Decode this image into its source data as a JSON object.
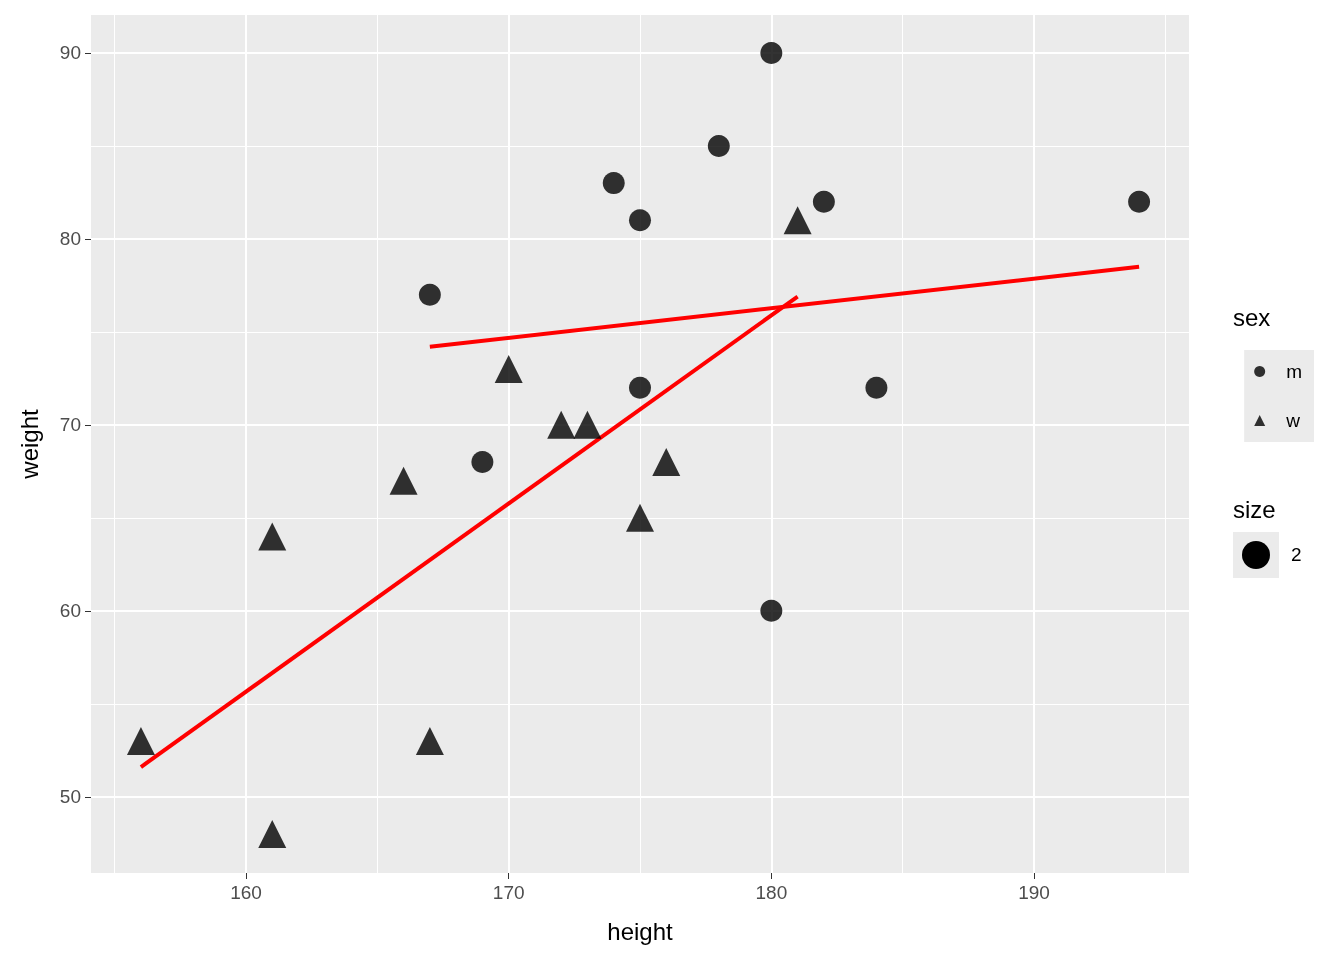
{
  "chart_data": {
    "type": "scatter",
    "xlabel": "height",
    "ylabel": "weight",
    "legend_title": "sex",
    "legend": "right",
    "grid": true,
    "xlim": [
      154.1,
      195.9
    ],
    "xticks": [
      160,
      170,
      180,
      190
    ],
    "ylim": [
      45.9,
      92.04
    ],
    "yticks": [
      50,
      60,
      70,
      80,
      90
    ],
    "annotations": [
      "size",
      "2"
    ],
    "series": [
      {
        "name": "m",
        "color": "#000000",
        "marker": "circle",
        "x": [
          180,
          178,
          174,
          175,
          182,
          194,
          167,
          175,
          184,
          169,
          180
        ],
        "values": [
          90,
          85,
          83,
          81,
          82,
          82,
          77,
          72,
          72,
          68,
          60
        ]
      },
      {
        "name": "w",
        "color": "#000000",
        "marker": "triangle",
        "x": [
          181,
          170,
          172,
          173,
          166,
          176,
          175,
          161,
          156,
          167,
          161
        ],
        "values": [
          81,
          73,
          70,
          70,
          67,
          68,
          65,
          64,
          53,
          53,
          48
        ]
      },
      {
        "type": "line",
        "color": "#ff0000",
        "marker": "none",
        "x": [
          167,
          194
        ],
        "values": [
          74.2,
          78.5
        ]
      },
      {
        "type": "line",
        "color": "#ff0000",
        "marker": "none",
        "x": [
          156,
          181
        ],
        "values": [
          51.6,
          76.9
        ]
      }
    ]
  }
}
